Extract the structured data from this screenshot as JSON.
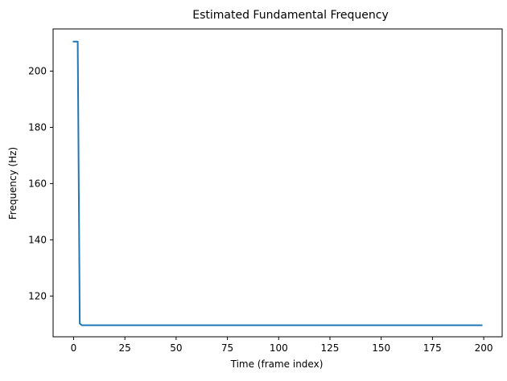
{
  "chart_data": {
    "type": "line",
    "title": "Estimated Fundamental Frequency",
    "xlabel": "Time (frame index)",
    "ylabel": "Frequency (Hz)",
    "xlim": [
      -10,
      209
    ],
    "ylim": [
      105.5,
      215
    ],
    "xticks": [
      0,
      25,
      50,
      75,
      100,
      125,
      150,
      175,
      200
    ],
    "yticks": [
      120,
      140,
      160,
      180,
      200
    ],
    "grid": false,
    "series": [
      {
        "color": "#1f77b4",
        "x": [
          0,
          1,
          2,
          3,
          4,
          199
        ],
        "y": [
          210.5,
          210.5,
          210.5,
          110.2,
          109.6,
          109.6
        ]
      }
    ]
  }
}
